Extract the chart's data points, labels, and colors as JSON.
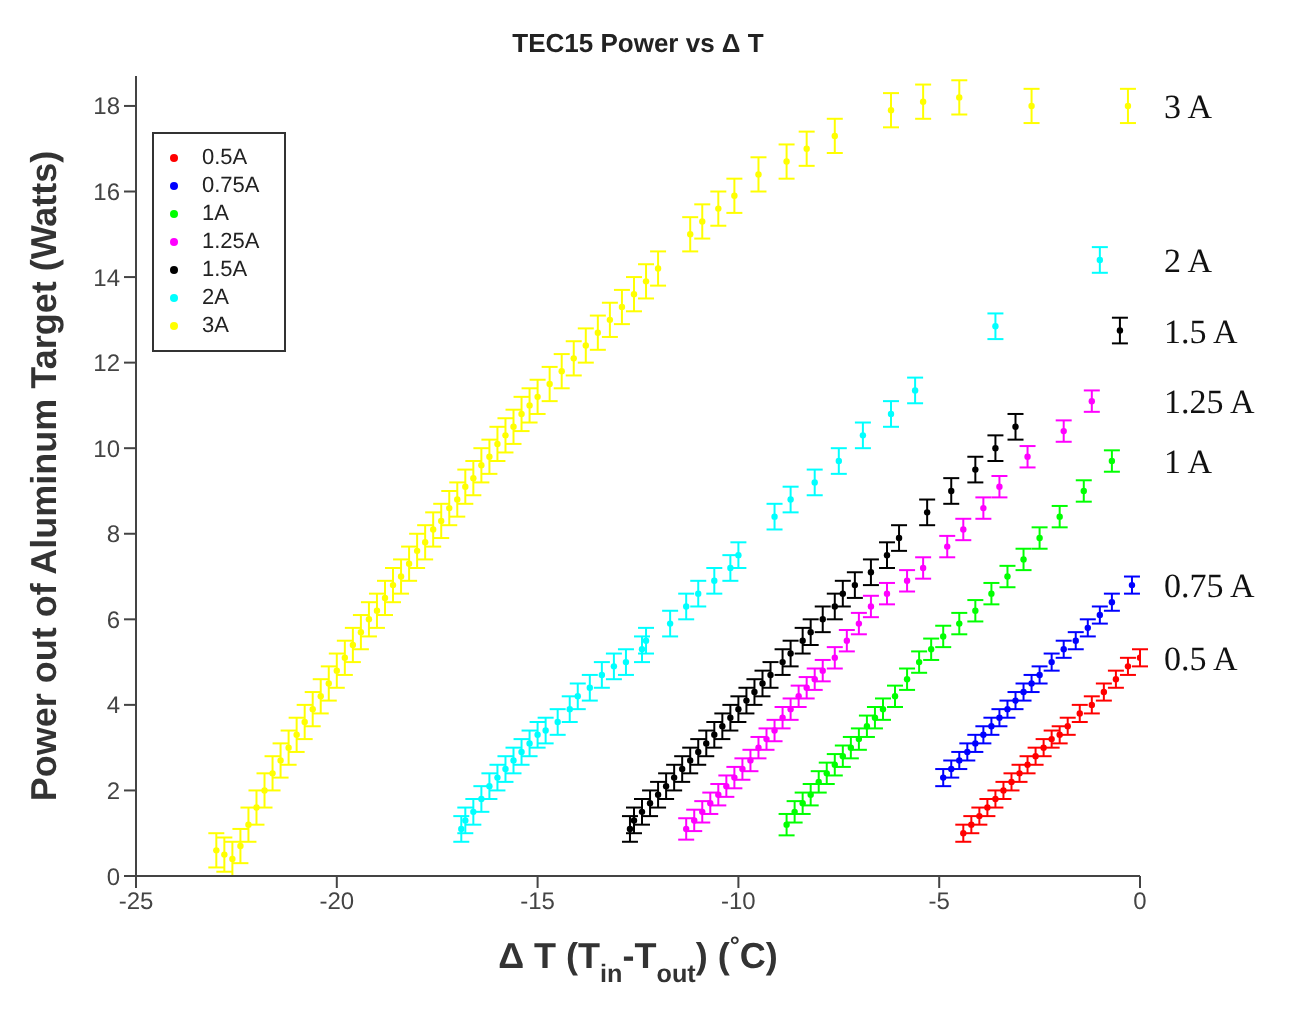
{
  "chart_data": {
    "type": "scatter",
    "title": "TEC15  Power vs Δ T",
    "xlabel": "Δ T (T$_{in}$-T$_{out}$) ($^{°}$C)",
    "ylabel": "Power out of Aluminum Target (Watts)",
    "xlim": [
      -25,
      0
    ],
    "xticks": [
      -25,
      -20,
      -15,
      -10,
      -5,
      0
    ],
    "ylim": [
      0,
      18.7
    ],
    "yticks": [
      0,
      2,
      4,
      6,
      8,
      10,
      12,
      14,
      16,
      18
    ],
    "grid": false,
    "legend": "top left",
    "marker": "circle",
    "annotations": [
      "3 A",
      "2 A",
      "1.5 A",
      "1.25 A",
      "1 A",
      "0.75 A",
      "0.5 A"
    ],
    "series": [
      {
        "name": "0.5A",
        "color": "#ff0000",
        "x": [
          -4.4,
          -4.2,
          -4.0,
          -3.8,
          -3.6,
          -3.4,
          -3.2,
          -3.0,
          -2.8,
          -2.6,
          -2.4,
          -2.2,
          -2.0,
          -1.8,
          -1.5,
          -1.2,
          -0.9,
          -0.6,
          -0.3,
          0
        ],
        "values": [
          1.0,
          1.2,
          1.4,
          1.6,
          1.8,
          2.0,
          2.2,
          2.4,
          2.6,
          2.8,
          3.0,
          3.2,
          3.3,
          3.5,
          3.8,
          4.0,
          4.3,
          4.6,
          4.9,
          5.1
        ],
        "errors": [
          0.2,
          0.2,
          0.2,
          0.2,
          0.2,
          0.2,
          0.2,
          0.2,
          0.2,
          0.2,
          0.2,
          0.2,
          0.2,
          0.2,
          0.2,
          0.2,
          0.2,
          0.2,
          0.2,
          0.2
        ]
      },
      {
        "name": "0.75A",
        "color": "#0000ff",
        "x": [
          -4.9,
          -4.7,
          -4.5,
          -4.3,
          -4.1,
          -3.9,
          -3.7,
          -3.5,
          -3.3,
          -3.1,
          -2.9,
          -2.7,
          -2.5,
          -2.2,
          -1.9,
          -1.6,
          -1.3,
          -1.0,
          -0.7,
          -0.2
        ],
        "values": [
          2.3,
          2.5,
          2.7,
          2.9,
          3.1,
          3.3,
          3.5,
          3.7,
          3.9,
          4.1,
          4.3,
          4.5,
          4.7,
          5.0,
          5.3,
          5.5,
          5.8,
          6.1,
          6.4,
          6.8
        ],
        "errors": [
          0.2,
          0.2,
          0.2,
          0.2,
          0.2,
          0.2,
          0.2,
          0.2,
          0.2,
          0.2,
          0.2,
          0.2,
          0.2,
          0.2,
          0.2,
          0.2,
          0.2,
          0.2,
          0.2,
          0.2
        ]
      },
      {
        "name": "1A",
        "color": "#00ff00",
        "x": [
          -8.8,
          -8.6,
          -8.4,
          -8.2,
          -8.0,
          -7.8,
          -7.6,
          -7.4,
          -7.2,
          -7.0,
          -6.8,
          -6.6,
          -6.4,
          -6.1,
          -5.8,
          -5.5,
          -5.2,
          -4.9,
          -4.5,
          -4.1,
          -3.7,
          -3.3,
          -2.9,
          -2.5,
          -2.0,
          -1.4,
          -0.7
        ],
        "values": [
          1.2,
          1.5,
          1.7,
          1.9,
          2.2,
          2.4,
          2.6,
          2.8,
          3.0,
          3.2,
          3.5,
          3.7,
          3.9,
          4.2,
          4.6,
          5.0,
          5.3,
          5.6,
          5.9,
          6.2,
          6.6,
          7.0,
          7.4,
          7.9,
          8.4,
          9.0,
          9.7
        ],
        "errors": [
          0.25,
          0.25,
          0.25,
          0.25,
          0.25,
          0.25,
          0.25,
          0.25,
          0.25,
          0.25,
          0.25,
          0.25,
          0.25,
          0.25,
          0.25,
          0.25,
          0.25,
          0.25,
          0.25,
          0.25,
          0.25,
          0.25,
          0.25,
          0.25,
          0.25,
          0.25,
          0.25
        ]
      },
      {
        "name": "1.25A",
        "color": "#ff00ff",
        "x": [
          -11.3,
          -11.1,
          -10.9,
          -10.7,
          -10.5,
          -10.3,
          -10.1,
          -9.9,
          -9.7,
          -9.5,
          -9.3,
          -9.1,
          -8.9,
          -8.7,
          -8.5,
          -8.3,
          -8.1,
          -7.9,
          -7.6,
          -7.3,
          -7.0,
          -6.7,
          -6.3,
          -5.8,
          -5.4,
          -4.8,
          -4.4,
          -3.9,
          -3.5,
          -2.8,
          -1.9,
          -1.2
        ],
        "values": [
          1.1,
          1.3,
          1.5,
          1.7,
          1.9,
          2.1,
          2.3,
          2.5,
          2.7,
          3.0,
          3.2,
          3.4,
          3.7,
          3.9,
          4.2,
          4.4,
          4.6,
          4.8,
          5.1,
          5.5,
          5.9,
          6.3,
          6.6,
          6.9,
          7.2,
          7.7,
          8.1,
          8.6,
          9.1,
          9.8,
          10.4,
          11.1
        ],
        "errors": [
          0.25,
          0.25,
          0.25,
          0.25,
          0.25,
          0.25,
          0.25,
          0.25,
          0.25,
          0.25,
          0.25,
          0.25,
          0.25,
          0.25,
          0.25,
          0.25,
          0.25,
          0.25,
          0.25,
          0.25,
          0.25,
          0.25,
          0.25,
          0.25,
          0.25,
          0.25,
          0.25,
          0.25,
          0.25,
          0.25,
          0.25,
          0.25
        ]
      },
      {
        "name": "1.5A",
        "color": "#000000",
        "x": [
          -12.7,
          -12.6,
          -12.4,
          -12.2,
          -12.0,
          -11.8,
          -11.6,
          -11.4,
          -11.2,
          -11.0,
          -10.8,
          -10.6,
          -10.4,
          -10.2,
          -10.0,
          -9.8,
          -9.6,
          -9.4,
          -9.2,
          -8.9,
          -8.7,
          -8.4,
          -8.2,
          -7.9,
          -7.6,
          -7.4,
          -7.1,
          -6.7,
          -6.3,
          -6.0,
          -5.3,
          -4.7,
          -4.1,
          -3.6,
          -3.1,
          -0.5
        ],
        "values": [
          1.1,
          1.3,
          1.5,
          1.7,
          1.9,
          2.1,
          2.3,
          2.5,
          2.7,
          2.9,
          3.1,
          3.3,
          3.5,
          3.7,
          3.9,
          4.1,
          4.3,
          4.5,
          4.7,
          5.0,
          5.2,
          5.5,
          5.7,
          6.0,
          6.3,
          6.6,
          6.8,
          7.1,
          7.5,
          7.9,
          8.5,
          9.0,
          9.5,
          10.0,
          10.5,
          12.75
        ],
        "errors": [
          0.3,
          0.3,
          0.3,
          0.3,
          0.3,
          0.3,
          0.3,
          0.3,
          0.3,
          0.3,
          0.3,
          0.3,
          0.3,
          0.3,
          0.3,
          0.3,
          0.3,
          0.3,
          0.3,
          0.3,
          0.3,
          0.3,
          0.3,
          0.3,
          0.3,
          0.3,
          0.3,
          0.3,
          0.3,
          0.3,
          0.3,
          0.3,
          0.3,
          0.3,
          0.3,
          0.3
        ]
      },
      {
        "name": "2A",
        "color": "#00ffff",
        "x": [
          -16.9,
          -16.8,
          -16.6,
          -16.4,
          -16.2,
          -16.0,
          -15.8,
          -15.6,
          -15.4,
          -15.2,
          -15.0,
          -14.8,
          -14.5,
          -14.2,
          -14.0,
          -13.7,
          -13.4,
          -13.1,
          -12.8,
          -12.4,
          -12.3,
          -11.7,
          -11.3,
          -11.0,
          -10.6,
          -10.2,
          -10.0,
          -9.1,
          -8.7,
          -8.1,
          -7.5,
          -6.9,
          -6.2,
          -5.6,
          -3.6,
          -1.0
        ],
        "values": [
          1.1,
          1.3,
          1.5,
          1.8,
          2.1,
          2.3,
          2.5,
          2.7,
          2.9,
          3.1,
          3.3,
          3.4,
          3.6,
          3.9,
          4.2,
          4.4,
          4.7,
          4.9,
          5.0,
          5.3,
          5.5,
          5.9,
          6.3,
          6.6,
          6.9,
          7.2,
          7.5,
          8.4,
          8.8,
          9.2,
          9.7,
          10.3,
          10.8,
          11.35,
          12.85,
          14.4
        ],
        "errors": [
          0.3,
          0.3,
          0.3,
          0.3,
          0.3,
          0.3,
          0.3,
          0.3,
          0.3,
          0.3,
          0.3,
          0.3,
          0.3,
          0.3,
          0.3,
          0.3,
          0.3,
          0.3,
          0.3,
          0.3,
          0.3,
          0.3,
          0.3,
          0.3,
          0.3,
          0.3,
          0.3,
          0.3,
          0.3,
          0.3,
          0.3,
          0.3,
          0.3,
          0.3,
          0.3,
          0.3
        ]
      },
      {
        "name": "3A",
        "color": "#ffff00",
        "x": [
          -23.0,
          -22.8,
          -22.6,
          -22.4,
          -22.2,
          -22.0,
          -21.8,
          -21.6,
          -21.4,
          -21.2,
          -21.0,
          -20.8,
          -20.6,
          -20.4,
          -20.2,
          -20.0,
          -19.8,
          -19.6,
          -19.4,
          -19.2,
          -19.0,
          -18.8,
          -18.6,
          -18.4,
          -18.2,
          -18.0,
          -17.8,
          -17.6,
          -17.4,
          -17.2,
          -17.0,
          -16.8,
          -16.6,
          -16.4,
          -16.2,
          -16.0,
          -15.8,
          -15.6,
          -15.4,
          -15.2,
          -15.0,
          -14.7,
          -14.4,
          -14.1,
          -13.8,
          -13.5,
          -13.2,
          -12.9,
          -12.6,
          -12.3,
          -12.0,
          -11.2,
          -10.9,
          -10.5,
          -10.1,
          -9.5,
          -8.8,
          -8.3,
          -7.6,
          -6.2,
          -5.4,
          -4.5,
          -2.7,
          -0.3
        ],
        "values": [
          0.6,
          0.5,
          0.4,
          0.7,
          1.2,
          1.6,
          2.0,
          2.4,
          2.7,
          3.0,
          3.3,
          3.6,
          3.9,
          4.2,
          4.5,
          4.8,
          5.1,
          5.4,
          5.7,
          6.0,
          6.2,
          6.5,
          6.8,
          7.0,
          7.3,
          7.6,
          7.8,
          8.1,
          8.3,
          8.6,
          8.8,
          9.1,
          9.3,
          9.6,
          9.8,
          10.1,
          10.3,
          10.5,
          10.8,
          11.0,
          11.2,
          11.5,
          11.8,
          12.1,
          12.4,
          12.7,
          13.0,
          13.3,
          13.6,
          13.9,
          14.2,
          15.0,
          15.3,
          15.6,
          15.9,
          16.4,
          16.7,
          17.0,
          17.3,
          17.9,
          18.1,
          18.2,
          18.0,
          18.0
        ],
        "errors": [
          0.4,
          0.4,
          0.4,
          0.4,
          0.4,
          0.4,
          0.4,
          0.4,
          0.4,
          0.4,
          0.4,
          0.4,
          0.4,
          0.4,
          0.4,
          0.4,
          0.4,
          0.4,
          0.4,
          0.4,
          0.4,
          0.4,
          0.4,
          0.4,
          0.4,
          0.4,
          0.4,
          0.4,
          0.4,
          0.4,
          0.4,
          0.4,
          0.4,
          0.4,
          0.4,
          0.4,
          0.4,
          0.4,
          0.4,
          0.4,
          0.4,
          0.4,
          0.4,
          0.4,
          0.4,
          0.4,
          0.4,
          0.4,
          0.4,
          0.4,
          0.4,
          0.4,
          0.4,
          0.4,
          0.4,
          0.4,
          0.4,
          0.4,
          0.4,
          0.4,
          0.4,
          0.4,
          0.4,
          0.4
        ]
      }
    ]
  }
}
